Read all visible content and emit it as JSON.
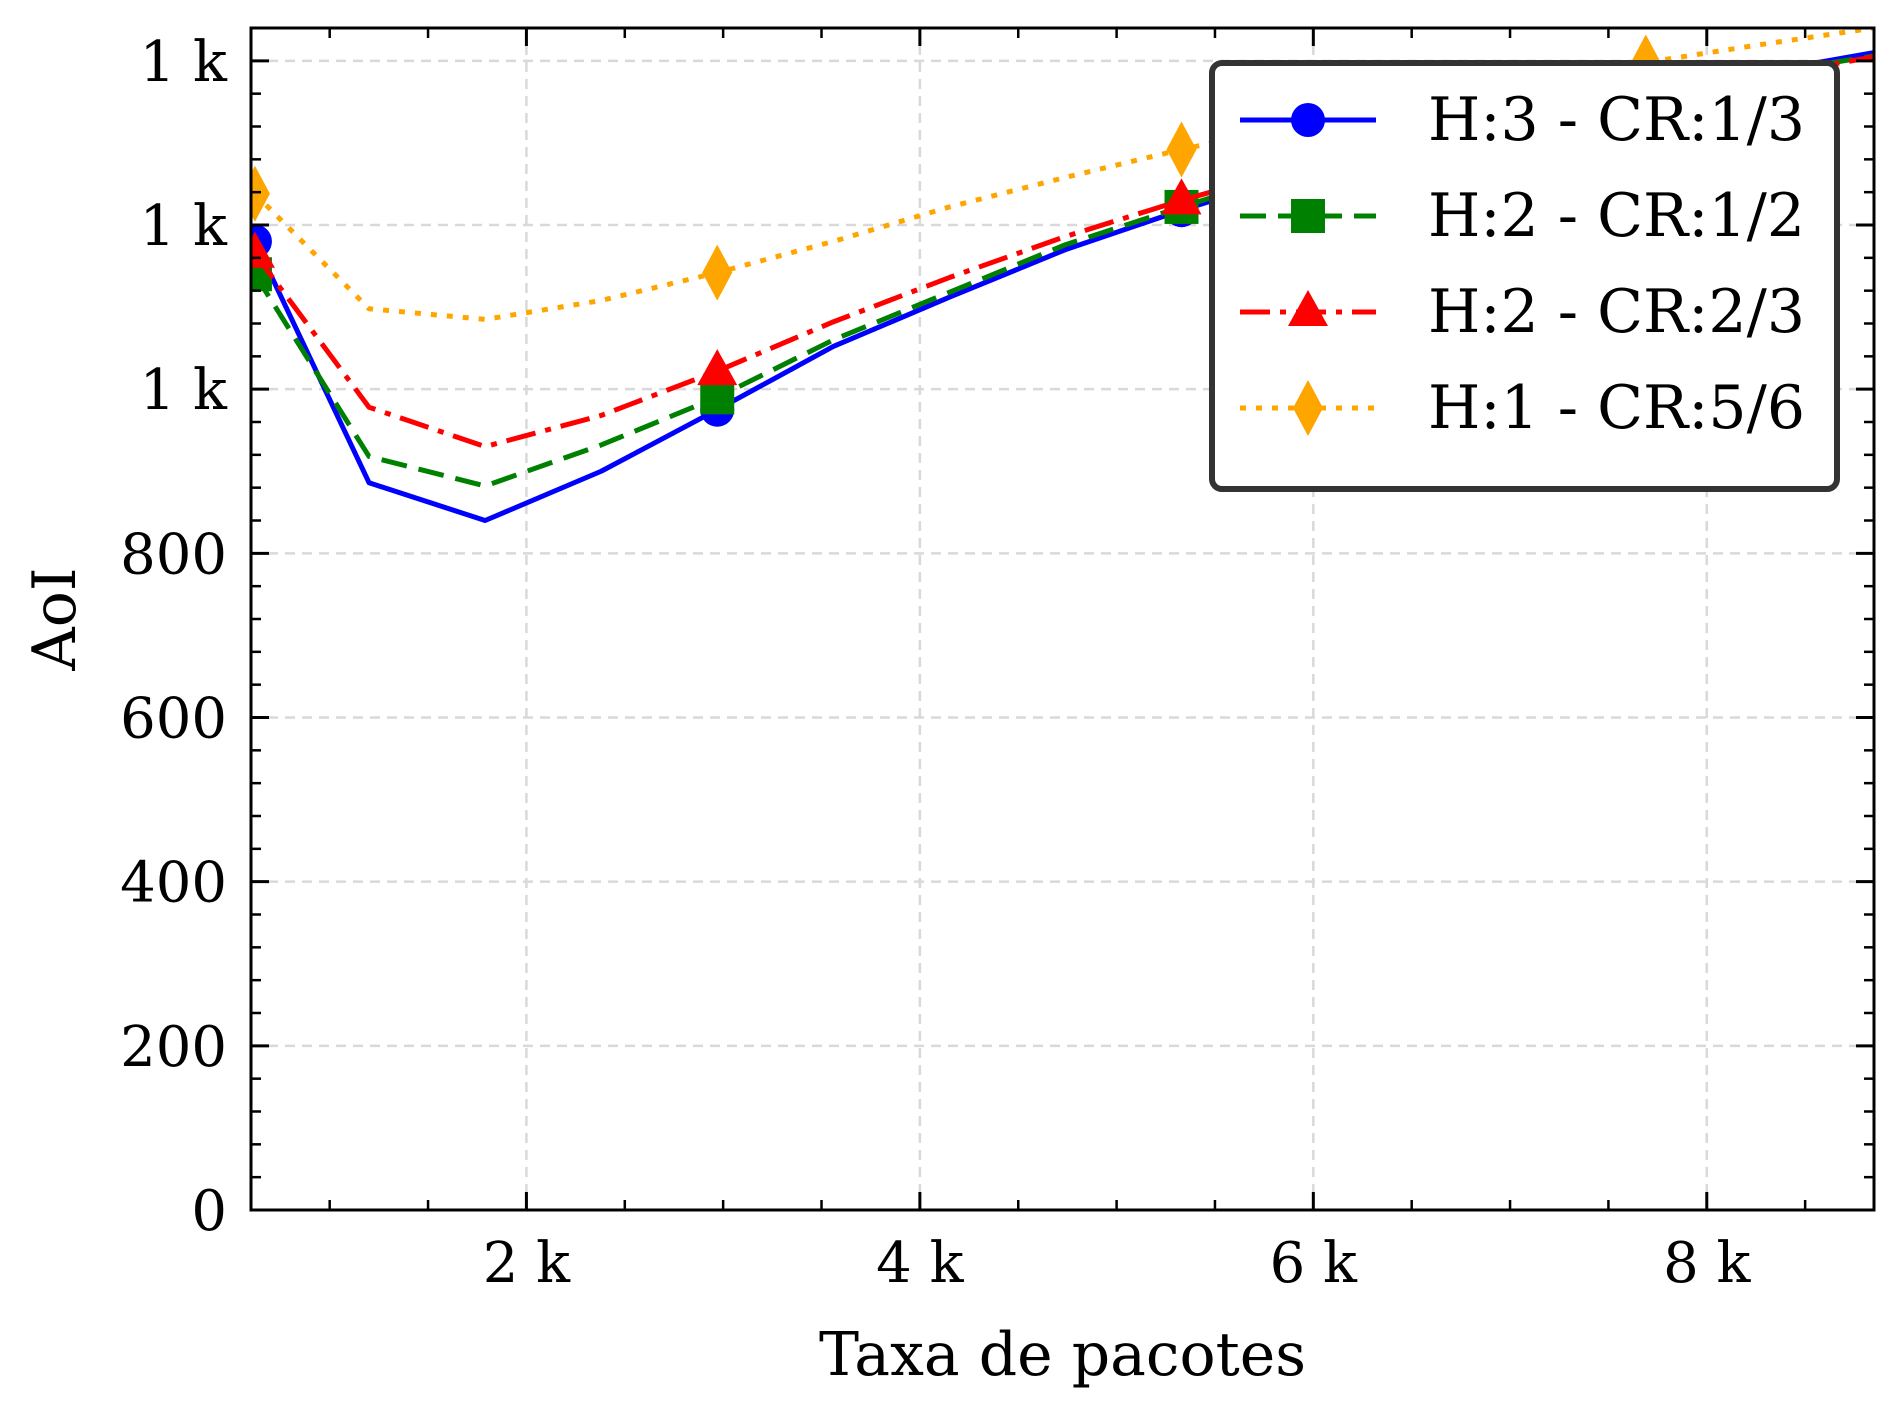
{
  "chart_data": {
    "type": "line",
    "title": "",
    "xlabel": "Taxa de pacotes",
    "ylabel": "AoI",
    "xlim": [
      600,
      8850
    ],
    "ylim": [
      0,
      1440
    ],
    "grid": true,
    "legend_position": "top-right",
    "x_ticks": [
      {
        "value": 2000,
        "label": "2 k"
      },
      {
        "value": 4000,
        "label": "4 k"
      },
      {
        "value": 6000,
        "label": "6 k"
      },
      {
        "value": 8000,
        "label": "8 k"
      }
    ],
    "y_ticks": [
      {
        "value": 0,
        "label": "0"
      },
      {
        "value": 200,
        "label": "200"
      },
      {
        "value": 400,
        "label": "400"
      },
      {
        "value": 600,
        "label": "600"
      },
      {
        "value": 800,
        "label": "800"
      },
      {
        "value": 1000,
        "label": "1 k"
      },
      {
        "value": 1200,
        "label": "1 k"
      },
      {
        "value": 1400,
        "label": "1 k"
      }
    ],
    "series": [
      {
        "name": "H:3 - CR:1/3",
        "color": "#0000ff",
        "dash": "solid",
        "marker": "circle",
        "x": [
          620,
          1200,
          1790,
          2380,
          2970,
          3560,
          4150,
          4740,
          5330,
          5920,
          6510,
          7100,
          7690,
          8280,
          8850
        ],
        "y": [
          1180,
          886,
          840,
          900,
          975,
          1052,
          1112,
          1170,
          1218,
          1262,
          1300,
          1336,
          1362,
          1386,
          1410
        ],
        "marker_x": [
          620,
          2970,
          5330,
          7690
        ],
        "marker_y": [
          1180,
          975,
          1218,
          1362
        ]
      },
      {
        "name": "H:2 - CR:1/2",
        "color": "#008000",
        "dash": "dashed",
        "marker": "square",
        "x": [
          620,
          1200,
          1790,
          2380,
          2970,
          3560,
          4150,
          4740,
          5330,
          5920,
          6510,
          7100,
          7690,
          8280,
          8850
        ],
        "y": [
          1140,
          918,
          882,
          932,
          990,
          1060,
          1118,
          1176,
          1222,
          1266,
          1302,
          1336,
          1362,
          1384,
          1406
        ],
        "marker_x": [
          620,
          2970,
          5330,
          7690
        ],
        "marker_y": [
          1140,
          990,
          1222,
          1362
        ]
      },
      {
        "name": "H:2 - CR:2/3",
        "color": "#ff0000",
        "dash": "dashdot",
        "marker": "triangle",
        "x": [
          620,
          1200,
          1790,
          2380,
          2970,
          3560,
          4150,
          4740,
          5330,
          5920,
          6510,
          7100,
          7690,
          8280,
          8850
        ],
        "y": [
          1165,
          978,
          930,
          968,
          1022,
          1082,
          1136,
          1186,
          1230,
          1270,
          1306,
          1338,
          1358,
          1380,
          1405
        ],
        "marker_x": [
          620,
          2970,
          5330,
          7690
        ],
        "marker_y": [
          1165,
          1022,
          1230,
          1358
        ]
      },
      {
        "name": "H:1 - CR:5/6",
        "color": "#ffa500",
        "dash": "dotted",
        "marker": "diamond",
        "x": [
          620,
          1200,
          1790,
          2380,
          2970,
          3560,
          4150,
          4740,
          5330,
          5920,
          6510,
          7100,
          7690,
          8280,
          8850
        ],
        "y": [
          1238,
          1098,
          1085,
          1108,
          1142,
          1180,
          1222,
          1258,
          1292,
          1322,
          1350,
          1374,
          1398,
          1420,
          1440
        ],
        "marker_x": [
          620,
          2970,
          5330,
          7690
        ],
        "marker_y": [
          1238,
          1142,
          1292,
          1398
        ]
      }
    ]
  }
}
